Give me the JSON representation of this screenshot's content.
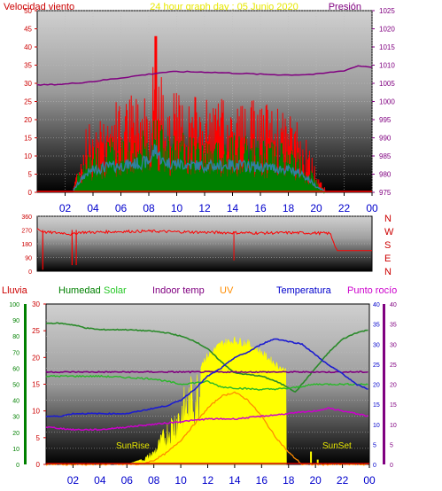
{
  "header": {
    "title_left": "Velocidad viento",
    "title_center": "24 hour graph day : 05 Junio 2020",
    "title_right": "Presión"
  },
  "labels": {
    "lluvia": "Lluvia",
    "humedad": "Humedad",
    "solar": "Solar",
    "indoor": "Indoor temp",
    "uv": "UV",
    "temperatura": "Temperatura",
    "punto_rocio": "Punto rocío",
    "sunrise": "SunRise",
    "sunset": "SunSet"
  },
  "colors": {
    "wind": "#ff0000",
    "gust_green": "#008000",
    "wind_avg": "#3080a0",
    "pressure": "#800080",
    "direction": "#ff0000",
    "humidity": "#2a8a2a",
    "solar": "#ffff00",
    "indoor": "#800080",
    "uv": "#ff8c00",
    "temperature": "#1c1cd0",
    "dewpoint": "#cc00cc",
    "axis_red": "#cc0000",
    "axis_blue": "#0000cc",
    "axis_green": "#008000"
  },
  "x_ticks": [
    "02",
    "04",
    "06",
    "08",
    "10",
    "12",
    "14",
    "16",
    "18",
    "20",
    "22",
    "00"
  ],
  "chart_data": [
    {
      "type": "line",
      "title": "Velocidad viento / Presión",
      "ylim": [
        0,
        50
      ],
      "y_ticks": [
        "0",
        "5",
        "10",
        "15",
        "20",
        "25",
        "30",
        "35",
        "40",
        "45",
        "50"
      ],
      "y2lim": [
        975,
        1025
      ],
      "y2_ticks": [
        "975",
        "980",
        "985",
        "990",
        "995",
        "1000",
        "1005",
        "1010",
        "1015",
        "1020",
        "1025"
      ],
      "xlim": [
        0,
        24
      ],
      "series": [
        {
          "name": "Velocidad viento",
          "x": [
            0,
            2.5,
            3,
            3.5,
            4,
            5,
            6,
            7,
            8,
            8.5,
            9,
            10,
            11,
            12,
            13,
            14,
            15,
            16,
            17,
            18,
            19,
            19.5,
            20,
            20.5,
            21,
            24
          ],
          "values": [
            0,
            0,
            10,
            18,
            22,
            25,
            26,
            28,
            30,
            43,
            30,
            28,
            27,
            26,
            26,
            27,
            26,
            25,
            24,
            22,
            18,
            12,
            6,
            2,
            0,
            0
          ]
        },
        {
          "name": "Presión",
          "x": [
            0,
            2,
            4,
            6,
            8,
            9,
            10,
            12,
            14,
            16,
            18,
            20,
            22,
            23,
            24
          ],
          "values": [
            1004.5,
            1004.8,
            1005.5,
            1006.5,
            1007.5,
            1008,
            1008.2,
            1008.1,
            1007.8,
            1007.5,
            1007.3,
            1007.5,
            1008.5,
            1009.8,
            1009.5
          ]
        }
      ]
    },
    {
      "type": "line",
      "title": "Dirección",
      "ylim": [
        0,
        360
      ],
      "y_ticks": [
        "0",
        "90",
        "180",
        "270",
        "360"
      ],
      "y2_labels": [
        "N",
        "W",
        "S",
        "E",
        "N"
      ],
      "xlim": [
        0,
        24
      ],
      "series": [
        {
          "name": "Dirección",
          "x": [
            0,
            0.3,
            0.5,
            2,
            2.5,
            3,
            4,
            6,
            8,
            10,
            12,
            14,
            16,
            18,
            20,
            21,
            21.5,
            24
          ],
          "values": [
            280,
            260,
            255,
            250,
            240,
            255,
            255,
            260,
            262,
            258,
            255,
            252,
            250,
            252,
            250,
            248,
            135,
            135
          ]
        }
      ]
    },
    {
      "type": "line",
      "title": "Lluvia / Humedad / Solar / Indoor temp / UV / Temperatura / Punto rocío",
      "ylim_lluvia": [
        0,
        100
      ],
      "y_ticks_lluvia": [
        "0",
        "10",
        "20",
        "30",
        "40",
        "50",
        "60",
        "70",
        "80",
        "90",
        "100"
      ],
      "ylim_temp": [
        0,
        30
      ],
      "y_ticks_temp": [
        "0",
        "5",
        "10",
        "15",
        "20",
        "25",
        "30"
      ],
      "y2lim": [
        0,
        40
      ],
      "y2_ticks": [
        "0",
        "5",
        "10",
        "15",
        "20",
        "25",
        "30",
        "35",
        "40"
      ],
      "xlim": [
        0,
        24
      ],
      "series": [
        {
          "name": "Humedad",
          "x": [
            0,
            1,
            2,
            3,
            4,
            6,
            8,
            9,
            10,
            11,
            12,
            13,
            14,
            15,
            16,
            17,
            18,
            18.5,
            19,
            20,
            21,
            22,
            23,
            24
          ],
          "values": [
            88,
            88,
            87,
            85,
            84,
            84,
            83,
            82,
            80,
            77,
            72,
            64,
            57,
            56,
            55,
            52,
            48,
            45,
            50,
            60,
            70,
            78,
            82,
            84
          ]
        },
        {
          "name": "Solar",
          "x": [
            0,
            6,
            7,
            7.5,
            8,
            9,
            10,
            11,
            12,
            13,
            14,
            15,
            16,
            17,
            17.8,
            18,
            24
          ],
          "values": [
            0,
            0,
            3,
            6,
            10,
            28,
            45,
            60,
            70,
            78,
            80,
            78,
            72,
            65,
            60,
            0,
            0
          ]
        },
        {
          "name": "Indoor temp",
          "x": [
            0,
            24
          ],
          "values": [
            36,
            36
          ]
        },
        {
          "name": "UV",
          "x": [
            0,
            7,
            8,
            9,
            10,
            11,
            12,
            13,
            14,
            15,
            16,
            17,
            18,
            19,
            24
          ],
          "values": [
            0,
            0,
            1,
            3,
            6,
            10,
            14,
            17,
            18,
            16,
            12,
            7,
            3,
            0,
            0
          ]
        },
        {
          "name": "Temperatura",
          "x": [
            0,
            1,
            2,
            3,
            4,
            5,
            6,
            7,
            8,
            9,
            10,
            11,
            12,
            13,
            14,
            15,
            16,
            17,
            18,
            19,
            20,
            21,
            22,
            23,
            24
          ],
          "values": [
            9,
            9,
            9.5,
            9.5,
            9.5,
            9.5,
            9.5,
            10,
            10.5,
            11,
            12,
            14,
            16.5,
            18,
            20,
            21,
            22.5,
            23.5,
            23,
            22.5,
            20.5,
            18.5,
            17,
            15,
            14
          ]
        },
        {
          "name": "Punto rocío",
          "x": [
            0,
            2,
            3,
            4,
            6,
            8,
            10,
            12,
            14,
            16,
            18,
            20,
            21,
            22,
            24
          ],
          "values": [
            7,
            6.5,
            6.5,
            6.5,
            7,
            7.5,
            8,
            8.5,
            8.5,
            9,
            9.5,
            10,
            10.5,
            10,
            9
          ]
        },
        {
          "name": "Lluvia",
          "x": [
            0,
            24
          ],
          "values": [
            0,
            0
          ]
        }
      ]
    }
  ]
}
